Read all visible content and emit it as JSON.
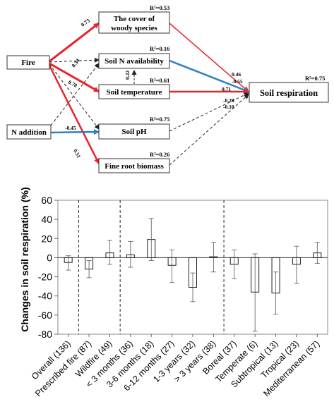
{
  "colors": {
    "positive": "#e8242b",
    "negative": "#2f7fc1",
    "nonsig": "#222222"
  },
  "diagram": {
    "nodes": [
      {
        "id": "fire",
        "label": "Fire"
      },
      {
        "id": "n_addition",
        "label": "N addition"
      },
      {
        "id": "woody",
        "label_lines": [
          "The cover of",
          "woody species"
        ],
        "r2": "R²=0.53"
      },
      {
        "id": "soil_n",
        "label": "Soil N availability",
        "r2": "R²=0.16"
      },
      {
        "id": "soil_temp",
        "label": "Soil temperature",
        "r2": "R²=0.61"
      },
      {
        "id": "soil_ph",
        "label": "Soil pH",
        "r2": "R²=0.75"
      },
      {
        "id": "root",
        "label": "Fine root biomass",
        "r2": "R²=0.26"
      },
      {
        "id": "resp",
        "label": "Soil respiration",
        "r2": "R²=0.75"
      }
    ],
    "edges": [
      {
        "from": "fire",
        "to": "woody",
        "coef": "0.73",
        "type": "positive"
      },
      {
        "from": "fire",
        "to": "soil_n",
        "coef": "",
        "type": "nonsig"
      },
      {
        "from": "fire",
        "to": "soil_temp",
        "coef": "0.78",
        "type": "positive"
      },
      {
        "from": "fire",
        "to": "soil_ph",
        "coef": "",
        "type": "nonsig"
      },
      {
        "from": "fire",
        "to": "root",
        "coef": "0.51",
        "type": "positive"
      },
      {
        "from": "n_addition",
        "to": "soil_n",
        "coef": "0.34",
        "type": "nonsig"
      },
      {
        "from": "n_addition",
        "to": "soil_ph",
        "coef": "-0.45",
        "type": "negative"
      },
      {
        "from": "soil_temp",
        "to": "soil_n",
        "coef": "0.22",
        "type": "nonsig"
      },
      {
        "from": "woody",
        "to": "resp",
        "coef": "0.46",
        "type": "positive"
      },
      {
        "from": "soil_n",
        "to": "resp",
        "coef": "-0.55",
        "type": "negative"
      },
      {
        "from": "soil_temp",
        "to": "resp",
        "coef": "0.71",
        "type": "positive"
      },
      {
        "from": "soil_ph",
        "to": "resp",
        "coef": "-0.28",
        "type": "nonsig"
      },
      {
        "from": "root",
        "to": "resp",
        "coef": "-0.10",
        "type": "nonsig"
      }
    ]
  },
  "chart_data": {
    "type": "bar",
    "ylabel": "Changes in soil respiration (%)",
    "ylim": [
      -80,
      60
    ],
    "yticks": [
      -80,
      -60,
      -40,
      -20,
      0,
      20,
      40,
      60
    ],
    "categories": [
      "Overall (136)",
      "Prescribed fire (87)",
      "Wildfire (49)",
      "< 3 months (36)",
      "3-6 months (18)",
      "6-12 months (27)",
      "1-3 years (32)",
      "> 3 years (38)",
      "Boreal (37)",
      "Temperate (6)",
      "Subtropical (13)",
      "Tropical (23)",
      "Mediterranean (57)"
    ],
    "values": [
      -5,
      -12,
      5,
      3,
      19,
      -8,
      -31,
      1,
      -7,
      -36,
      -37,
      -7,
      5
    ],
    "error_lower": [
      -13,
      -21,
      -7,
      -10,
      -3,
      -26,
      -46,
      -15,
      -22,
      -77,
      -59,
      -27,
      -6
    ],
    "error_upper": [
      2,
      -3,
      18,
      17,
      41,
      8,
      -16,
      16,
      8,
      4,
      -15,
      12,
      16
    ],
    "group_separators_after": [
      0,
      2,
      7
    ],
    "grid": false,
    "legend": "none"
  }
}
